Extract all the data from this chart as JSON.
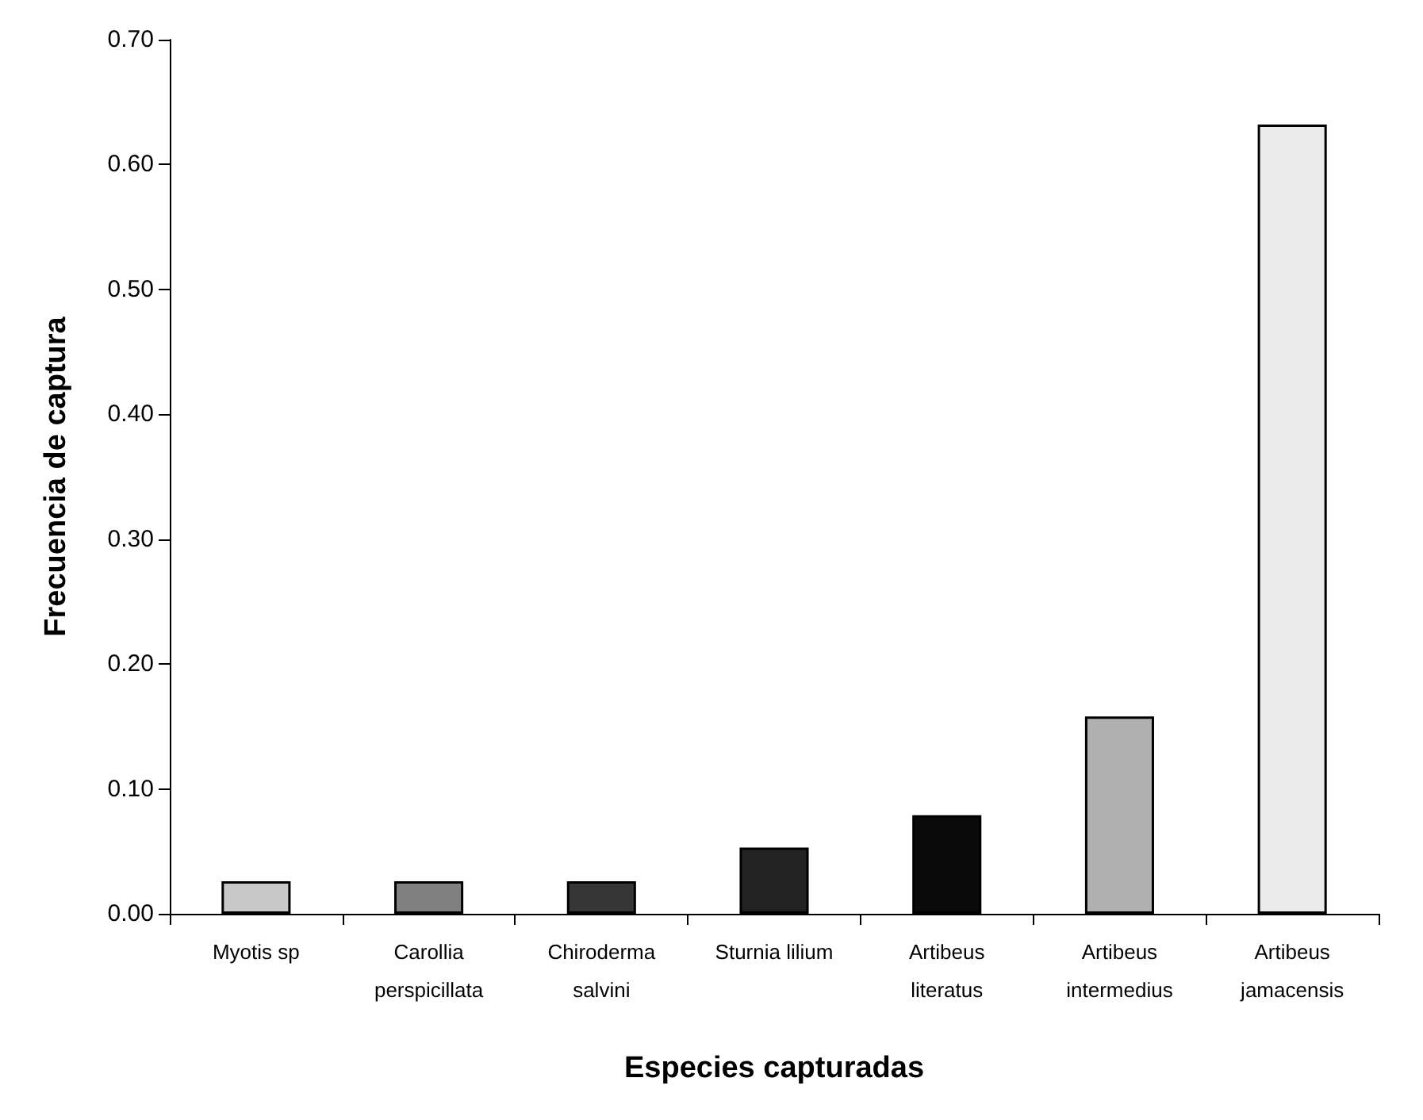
{
  "chart_data": {
    "type": "bar",
    "xlabel": "Especies capturadas",
    "ylabel": "Frecuencia de captura",
    "categories": [
      "Myotis sp",
      "Carollia\nperspicillata",
      "Chiroderma\nsalvini",
      "Sturnia lilium",
      "Artibeus\nliteratus",
      "Artibeus\nintermedius",
      "Artibeus\njamacensis"
    ],
    "values": [
      0.026,
      0.026,
      0.026,
      0.053,
      0.079,
      0.158,
      0.632
    ],
    "colors": [
      "#c8c8c8",
      "#808080",
      "#363636",
      "#222222",
      "#0a0a0a",
      "#b0b0b0",
      "#ebebeb"
    ],
    "ylim": [
      0,
      0.7
    ],
    "yticks": [
      {
        "value": 0,
        "label": "0.00"
      },
      {
        "value": 0.1,
        "label": "0.10"
      },
      {
        "value": 0.2,
        "label": "0.20"
      },
      {
        "value": 0.3,
        "label": "0.30"
      },
      {
        "value": 0.4,
        "label": "0.40"
      },
      {
        "value": 0.5,
        "label": "0.50"
      },
      {
        "value": 0.6,
        "label": "0.60"
      },
      {
        "value": 0.7,
        "label": "0.70"
      }
    ],
    "grid": false
  }
}
